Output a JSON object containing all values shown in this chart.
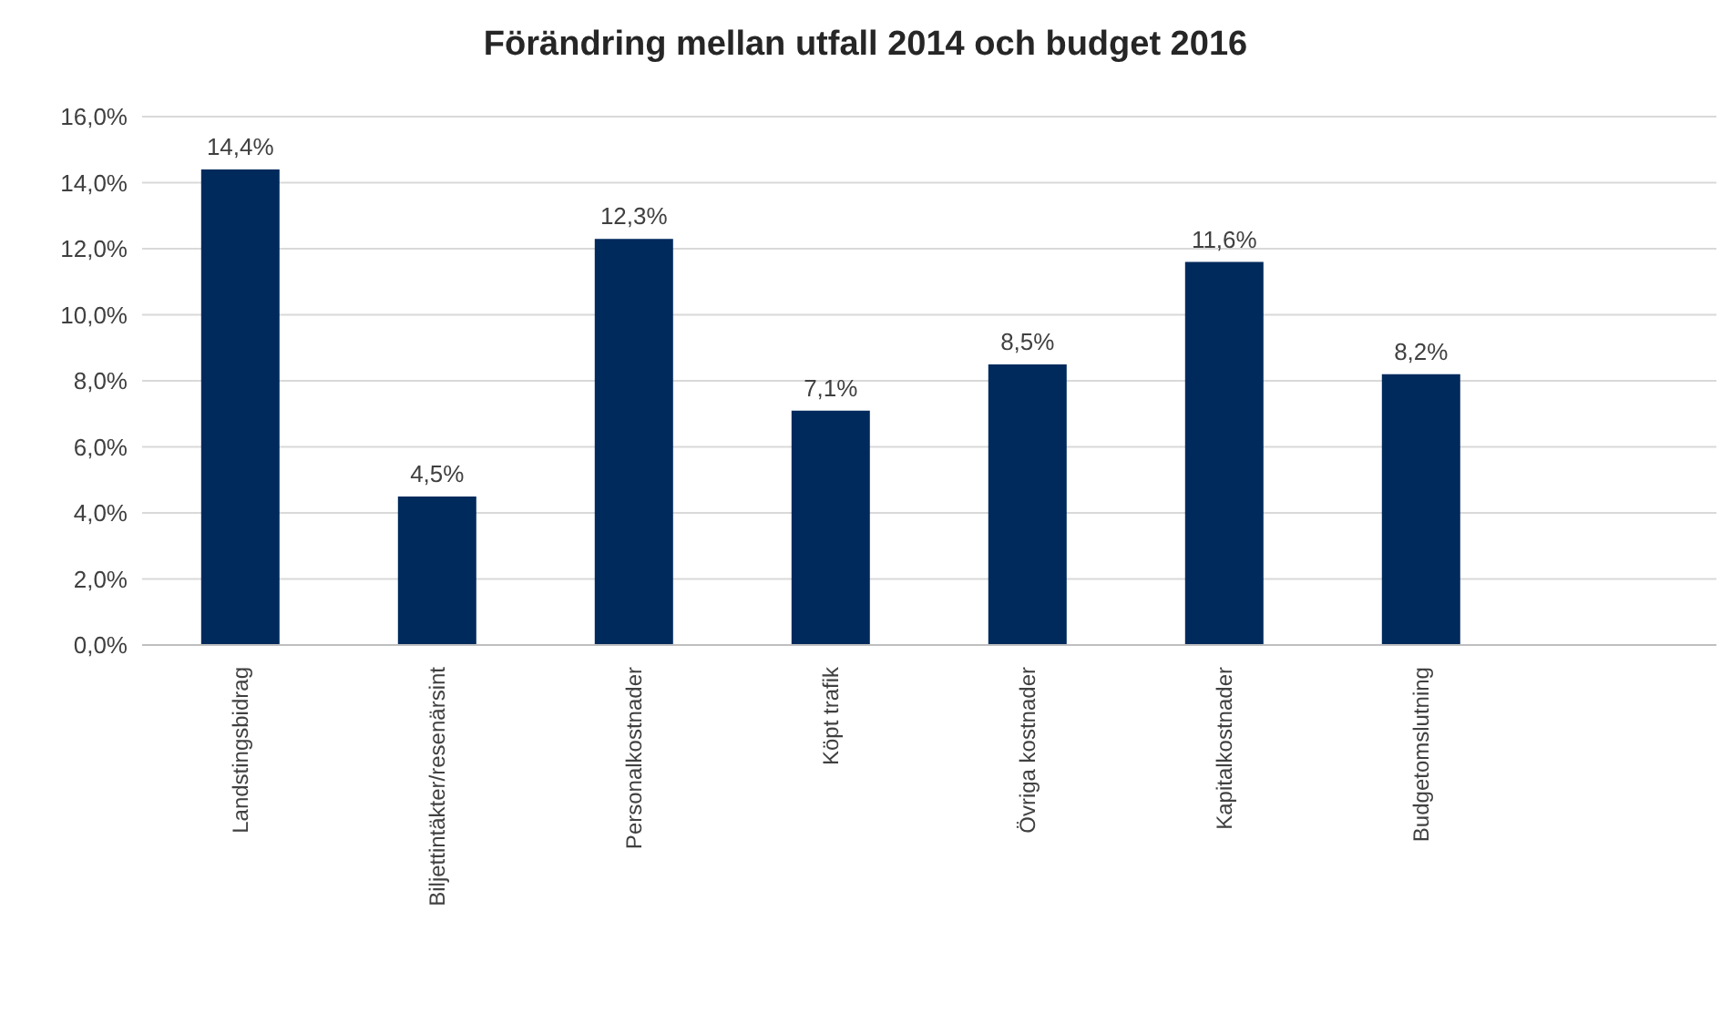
{
  "chart_data": {
    "type": "bar",
    "title": "Förändring mellan utfall 2014 och budget 2016",
    "categories": [
      "Landstingsbidrag",
      "Biljettintäkter/resenärsint",
      "Personalkostnader",
      "Köpt trafik",
      "Övriga kostnader",
      "Kapitalkostnader",
      "Budgetomslutning",
      null
    ],
    "values": [
      14.4,
      4.5,
      12.3,
      7.1,
      8.5,
      11.6,
      8.2,
      null
    ],
    "value_labels": [
      "14,4%",
      "4,5%",
      "12,3%",
      "7,1%",
      "8,5%",
      "11,6%",
      "8,2%",
      null
    ],
    "color": "#002a5c",
    "ylim": [
      0,
      16
    ],
    "yticks": [
      {
        "value": 0,
        "label": "0,0%"
      },
      {
        "value": 2,
        "label": "2,0%"
      },
      {
        "value": 4,
        "label": "4,0%"
      },
      {
        "value": 6,
        "label": "6,0%"
      },
      {
        "value": 8,
        "label": "8,0%"
      },
      {
        "value": 10,
        "label": "10,0%"
      },
      {
        "value": 12,
        "label": "12,0%"
      },
      {
        "value": 14,
        "label": "14,0%"
      },
      {
        "value": 16,
        "label": "16,0%"
      }
    ],
    "grid": "y"
  }
}
